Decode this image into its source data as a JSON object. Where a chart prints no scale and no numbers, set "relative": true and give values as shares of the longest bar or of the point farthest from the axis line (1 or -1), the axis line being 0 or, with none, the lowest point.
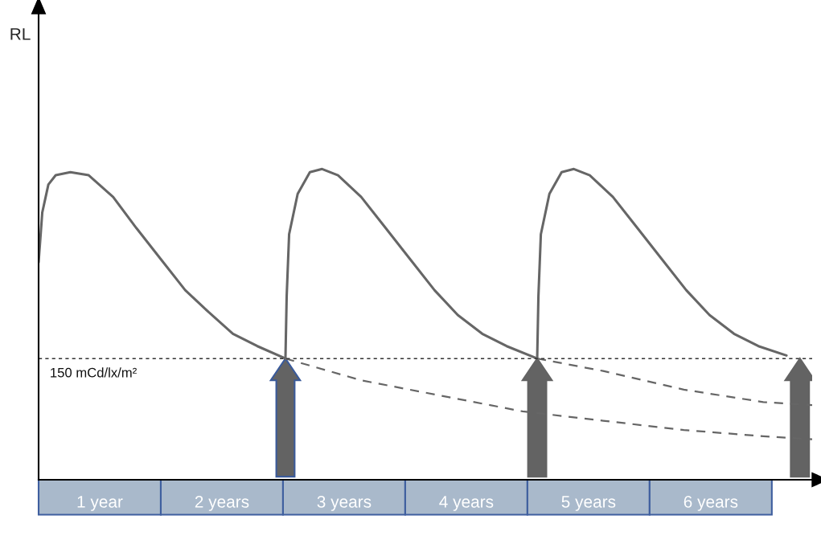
{
  "chart_data": {
    "type": "line",
    "relative": true,
    "annotations": [
      "RL"
    ],
    "xlim": [
      0,
      6.33
    ],
    "xticks": [
      {
        "value": 0.5,
        "label": "1 year"
      },
      {
        "value": 1.5,
        "label": "2 years"
      },
      {
        "value": 2.5,
        "label": "3 years"
      },
      {
        "value": 3.5,
        "label": "4 years"
      },
      {
        "value": 4.5,
        "label": "5 years"
      },
      {
        "value": 5.5,
        "label": "6 years"
      }
    ],
    "series": [
      {
        "color": "#666666",
        "x": [
          0,
          0.03,
          0.08,
          0.14,
          0.26,
          0.41,
          0.61,
          0.8,
          1.0,
          1.2,
          1.39,
          1.59,
          1.79,
          2.02
        ],
        "values": [
          0.7,
          0.86,
          0.95,
          0.98,
          0.99,
          0.98,
          0.91,
          0.81,
          0.71,
          0.61,
          0.54,
          0.47,
          0.43,
          0.39
        ]
      },
      {
        "color": "#666666",
        "x": [
          2.02,
          2.03,
          2.05,
          2.12,
          2.22,
          2.32,
          2.45,
          2.64,
          2.84,
          3.04,
          3.24,
          3.43,
          3.63,
          3.83,
          4.08
        ],
        "values": [
          0.39,
          0.59,
          0.79,
          0.92,
          0.99,
          1.0,
          0.98,
          0.91,
          0.81,
          0.71,
          0.61,
          0.53,
          0.47,
          0.43,
          0.39
        ]
      },
      {
        "color": "#666666",
        "x": [
          4.08,
          4.09,
          4.11,
          4.18,
          4.28,
          4.38,
          4.51,
          4.7,
          4.9,
          5.1,
          5.3,
          5.49,
          5.69,
          5.89,
          6.12
        ],
        "values": [
          0.39,
          0.59,
          0.79,
          0.92,
          0.99,
          1.0,
          0.98,
          0.91,
          0.81,
          0.71,
          0.61,
          0.53,
          0.47,
          0.43,
          0.4
        ]
      },
      {
        "color": "#666666",
        "line_style": "dashed",
        "x": [
          2.02,
          2.64,
          3.3,
          3.96,
          4.62,
          5.28,
          5.93,
          6.33
        ],
        "values": [
          0.39,
          0.32,
          0.27,
          0.22,
          0.19,
          0.16,
          0.14,
          0.13
        ]
      },
      {
        "color": "#666666",
        "line_style": "dashed",
        "x": [
          4.08,
          4.62,
          5.28,
          5.93,
          6.33
        ],
        "values": [
          0.39,
          0.35,
          0.29,
          0.25,
          0.24
        ]
      }
    ],
    "ref_lines": [
      {
        "axis": "y",
        "value": 0.39,
        "label": "150 mCd/lx/m²",
        "color": "#333333",
        "line_style": "dashed"
      }
    ],
    "grid": false
  }
}
